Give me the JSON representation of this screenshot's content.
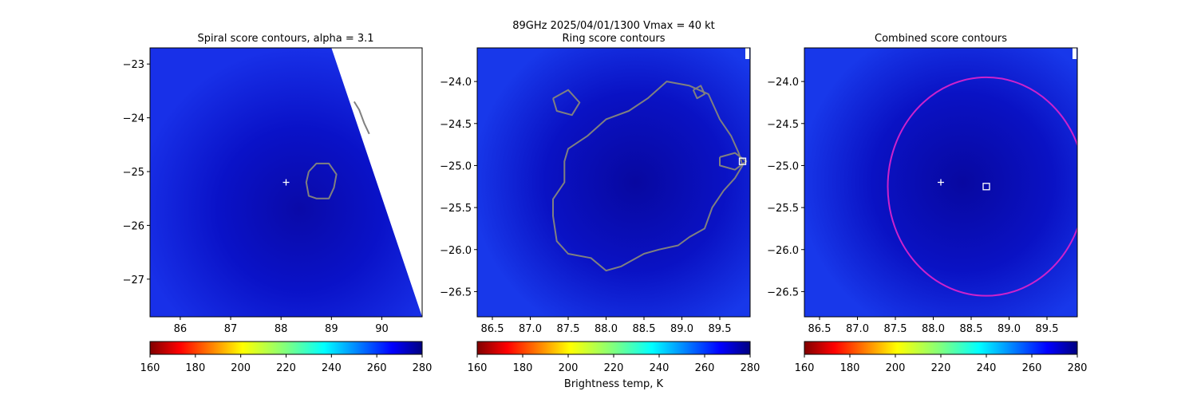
{
  "figure": {
    "suptitle_line1": "89GHz  2025/04/01/1300    Vmax = 40 kt",
    "colorbar_label": "Brightness temp, K",
    "colormap": "jet_r",
    "colors": {
      "contour": "#808080",
      "circle": "#cc22cc",
      "marker": "#ffffff"
    }
  },
  "chart_data": [
    {
      "type": "heatmap",
      "title": "Spiral score contours, alpha =  3.1",
      "xlim": [
        85.4,
        90.8
      ],
      "ylim": [
        -27.7,
        -22.7
      ],
      "xticks": [
        86,
        87,
        88,
        89,
        90
      ],
      "xtick_labels": [
        "86",
        "87",
        "88",
        "89",
        "90"
      ],
      "yticks": [
        -23,
        -24,
        -25,
        -26,
        -27
      ],
      "ytick_labels": [
        "−23",
        "−24",
        "−25",
        "−26",
        "−27"
      ],
      "colorbar": {
        "range": [
          160,
          280
        ],
        "ticks": [
          "160",
          "180",
          "200",
          "220",
          "240",
          "260",
          "280"
        ]
      },
      "center_marker": {
        "x": 88.1,
        "y": -25.2
      },
      "swath_edge": [
        [
          89.0,
          -22.7
        ],
        [
          90.8,
          -27.7
        ]
      ],
      "contours": [
        [
          [
            88.55,
            -25.0
          ],
          [
            88.7,
            -24.85
          ],
          [
            88.95,
            -24.85
          ],
          [
            89.1,
            -25.05
          ],
          [
            89.05,
            -25.3
          ],
          [
            88.95,
            -25.5
          ],
          [
            88.7,
            -25.5
          ],
          [
            88.55,
            -25.45
          ],
          [
            88.5,
            -25.2
          ],
          [
            88.55,
            -25.0
          ]
        ],
        [
          [
            89.45,
            -23.7
          ],
          [
            89.55,
            -23.85
          ],
          [
            89.65,
            -24.1
          ],
          [
            89.75,
            -24.3
          ]
        ]
      ]
    },
    {
      "type": "heatmap",
      "title": "Ring score contours",
      "xlim": [
        86.3,
        89.9
      ],
      "ylim": [
        -26.8,
        -23.6
      ],
      "xticks": [
        86.5,
        87.0,
        87.5,
        88.0,
        88.5,
        89.0,
        89.5
      ],
      "xtick_labels": [
        "86.5",
        "87.0",
        "87.5",
        "88.0",
        "88.5",
        "89.0",
        "89.5"
      ],
      "yticks": [
        -24.0,
        -24.5,
        -25.0,
        -25.5,
        -26.0,
        -26.5
      ],
      "ytick_labels": [
        "−24.0",
        "−24.5",
        "−25.0",
        "−25.5",
        "−26.0",
        "−26.5"
      ],
      "colorbar": {
        "range": [
          160,
          280
        ],
        "ticks": [
          "160",
          "180",
          "200",
          "220",
          "240",
          "260",
          "280"
        ]
      },
      "square_marker": {
        "x": 89.8,
        "y": -24.95
      },
      "contours": [
        [
          [
            87.75,
            -24.65
          ],
          [
            88.0,
            -24.45
          ],
          [
            88.3,
            -24.35
          ],
          [
            88.55,
            -24.2
          ],
          [
            88.8,
            -24.0
          ],
          [
            89.1,
            -24.05
          ],
          [
            89.35,
            -24.15
          ],
          [
            89.5,
            -24.45
          ],
          [
            89.65,
            -24.65
          ],
          [
            89.75,
            -24.85
          ],
          [
            89.8,
            -25.0
          ],
          [
            89.7,
            -25.15
          ],
          [
            89.55,
            -25.3
          ],
          [
            89.4,
            -25.5
          ],
          [
            89.3,
            -25.75
          ],
          [
            89.1,
            -25.85
          ],
          [
            88.95,
            -25.95
          ],
          [
            88.7,
            -26.0
          ],
          [
            88.5,
            -26.05
          ],
          [
            88.2,
            -26.2
          ],
          [
            88.0,
            -26.25
          ],
          [
            87.8,
            -26.1
          ],
          [
            87.5,
            -26.05
          ],
          [
            87.35,
            -25.9
          ],
          [
            87.3,
            -25.6
          ],
          [
            87.3,
            -25.4
          ],
          [
            87.45,
            -25.2
          ],
          [
            87.45,
            -24.95
          ],
          [
            87.5,
            -24.8
          ],
          [
            87.75,
            -24.65
          ]
        ],
        [
          [
            87.3,
            -24.2
          ],
          [
            87.5,
            -24.1
          ],
          [
            87.65,
            -24.25
          ],
          [
            87.55,
            -24.4
          ],
          [
            87.35,
            -24.35
          ],
          [
            87.3,
            -24.2
          ]
        ],
        [
          [
            89.15,
            -24.1
          ],
          [
            89.25,
            -24.05
          ],
          [
            89.3,
            -24.15
          ],
          [
            89.2,
            -24.2
          ],
          [
            89.15,
            -24.1
          ]
        ],
        [
          [
            89.5,
            -24.9
          ],
          [
            89.7,
            -24.85
          ],
          [
            89.85,
            -24.95
          ],
          [
            89.7,
            -25.05
          ],
          [
            89.5,
            -25.0
          ],
          [
            89.5,
            -24.9
          ]
        ]
      ]
    },
    {
      "type": "heatmap",
      "title": "Combined score contours",
      "xlim": [
        86.3,
        89.9
      ],
      "ylim": [
        -26.8,
        -23.6
      ],
      "xticks": [
        86.5,
        87.0,
        87.5,
        88.0,
        88.5,
        89.0,
        89.5
      ],
      "xtick_labels": [
        "86.5",
        "87.0",
        "87.5",
        "88.0",
        "88.5",
        "89.0",
        "89.5"
      ],
      "yticks": [
        -24.0,
        -24.5,
        -25.0,
        -25.5,
        -26.0,
        -26.5
      ],
      "ytick_labels": [
        "−24.0",
        "−24.5",
        "−25.0",
        "−25.5",
        "−26.0",
        "−26.5"
      ],
      "colorbar": {
        "range": [
          160,
          280
        ],
        "ticks": [
          "160",
          "180",
          "200",
          "220",
          "240",
          "260",
          "280"
        ]
      },
      "center_marker": {
        "x": 88.1,
        "y": -25.2
      },
      "square_marker": {
        "x": 88.7,
        "y": -25.25
      },
      "circle": {
        "cx": 88.7,
        "cy": -25.25,
        "r": 1.3
      }
    }
  ]
}
